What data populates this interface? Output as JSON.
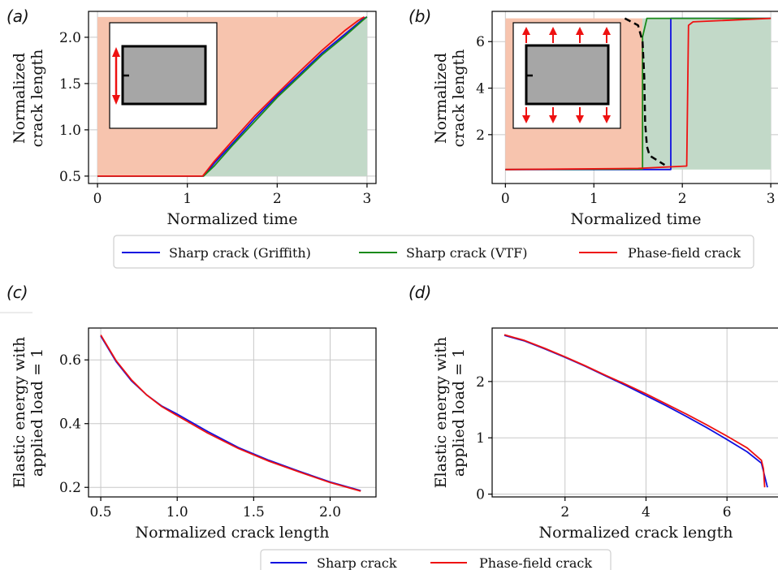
{
  "colors": {
    "griffith": "#1010e0",
    "vtf": "#1a8a1a",
    "phasefield": "#ee1111",
    "unstable_fill": "#f7c4ae",
    "stable_fill": "#c2d9c8",
    "specimen": "#a6a6a6",
    "arrows": "#ee1111"
  },
  "legend_top": [
    "Sharp crack (Griffith)",
    "Sharp crack (VTF)",
    "Phase-field crack"
  ],
  "legend_bottom": [
    "Sharp crack",
    "Phase-field crack"
  ],
  "chart_data": [
    {
      "panel": "(a)",
      "type": "line",
      "xlabel": "Normalized time",
      "ylabel": [
        "Normalized",
        "crack length"
      ],
      "xlim": [
        -0.1,
        3.1
      ],
      "ylim": [
        0.42,
        2.28
      ],
      "xticks": [
        {
          "v": 0,
          "label": "0"
        },
        {
          "v": 1,
          "label": "1"
        },
        {
          "v": 2,
          "label": "2"
        },
        {
          "v": 3,
          "label": "3"
        }
      ],
      "yticks": [
        {
          "v": 0.5,
          "label": "0.5"
        },
        {
          "v": 1.0,
          "label": "1.0"
        },
        {
          "v": 1.5,
          "label": "1.5"
        },
        {
          "v": 2.0,
          "label": "2.0"
        }
      ],
      "grid": true,
      "regions": {
        "x_range": [
          0,
          3
        ],
        "y_range": [
          0.5,
          2.22
        ]
      },
      "series": [
        {
          "key": "griffith",
          "x": [
            0,
            1.18,
            1.3,
            1.5,
            1.75,
            2.0,
            2.25,
            2.5,
            2.75,
            2.96,
            3.0
          ],
          "y": [
            0.5,
            0.5,
            0.64,
            0.85,
            1.12,
            1.37,
            1.6,
            1.83,
            2.03,
            2.2,
            2.22
          ]
        },
        {
          "key": "vtf",
          "x": [
            0,
            1.18,
            1.3,
            1.5,
            1.75,
            2.0,
            2.25,
            2.5,
            2.75,
            2.96,
            3.0
          ],
          "y": [
            0.5,
            0.5,
            0.61,
            0.83,
            1.09,
            1.35,
            1.58,
            1.81,
            2.01,
            2.19,
            2.22
          ]
        },
        {
          "key": "phasefield",
          "x": [
            0,
            1.17,
            1.3,
            1.5,
            1.75,
            2.0,
            2.25,
            2.5,
            2.75,
            2.9,
            2.97
          ],
          "y": [
            0.5,
            0.5,
            0.66,
            0.88,
            1.15,
            1.39,
            1.63,
            1.86,
            2.07,
            2.18,
            2.22
          ]
        }
      ]
    },
    {
      "panel": "(b)",
      "type": "line",
      "xlabel": "Normalized time",
      "ylabel": [
        "Normalized",
        "crack length"
      ],
      "xlim": [
        -0.15,
        3.1
      ],
      "ylim": [
        -0.1,
        7.3
      ],
      "xticks": [
        {
          "v": 0,
          "label": "0"
        },
        {
          "v": 1,
          "label": "1"
        },
        {
          "v": 2,
          "label": "2"
        },
        {
          "v": 3,
          "label": "3"
        }
      ],
      "yticks": [
        {
          "v": 2,
          "label": "2"
        },
        {
          "v": 4,
          "label": "4"
        },
        {
          "v": 6,
          "label": "6"
        }
      ],
      "grid": true,
      "regions": {
        "x_range": [
          0,
          3
        ],
        "y_range": [
          0.5,
          7.0
        ],
        "split_x": 1.55
      },
      "series": [
        {
          "key": "griffith",
          "x": [
            0,
            1.87,
            1.87,
            3.0
          ],
          "y": [
            0.5,
            0.5,
            7.0,
            7.0
          ]
        },
        {
          "key": "vtf",
          "x": [
            0,
            1.55,
            1.55,
            1.6,
            3.0
          ],
          "y": [
            0.5,
            0.52,
            6.2,
            7.0,
            7.0
          ]
        },
        {
          "key": "phasefield",
          "x": [
            0,
            1.5,
            2.05,
            2.07,
            2.12,
            3.0
          ],
          "y": [
            0.5,
            0.55,
            0.65,
            6.7,
            6.85,
            7.0
          ]
        },
        {
          "key": "boundary",
          "dashed": true,
          "x": [
            1.35,
            1.5,
            1.55,
            1.57,
            1.58,
            1.6,
            1.63,
            1.8
          ],
          "y": [
            7.0,
            6.7,
            6.0,
            4.5,
            2.5,
            1.5,
            1.1,
            0.7
          ]
        }
      ]
    },
    {
      "panel": "(c)",
      "type": "line",
      "xlabel": "Normalized crack length",
      "ylabel": [
        "Elastic energy with",
        "applied load = 1"
      ],
      "xlim": [
        0.42,
        2.3
      ],
      "ylim": [
        0.17,
        0.7
      ],
      "xticks": [
        {
          "v": 0.5,
          "label": "0.5"
        },
        {
          "v": 1.0,
          "label": "1.0"
        },
        {
          "v": 1.5,
          "label": "1.5"
        },
        {
          "v": 2.0,
          "label": "2.0"
        }
      ],
      "yticks": [
        {
          "v": 0.2,
          "label": "0.2"
        },
        {
          "v": 0.4,
          "label": "0.4"
        },
        {
          "v": 0.6,
          "label": "0.6"
        }
      ],
      "grid": true,
      "series": [
        {
          "key": "griffith",
          "x": [
            0.5,
            0.6,
            0.7,
            0.8,
            0.9,
            1.0,
            1.2,
            1.4,
            1.6,
            1.8,
            2.0,
            2.2
          ],
          "y": [
            0.675,
            0.595,
            0.535,
            0.49,
            0.455,
            0.43,
            0.375,
            0.325,
            0.285,
            0.25,
            0.217,
            0.19
          ]
        },
        {
          "key": "phasefield",
          "x": [
            0.5,
            0.6,
            0.7,
            0.8,
            0.9,
            1.0,
            1.2,
            1.4,
            1.6,
            1.8,
            2.0,
            2.2
          ],
          "y": [
            0.678,
            0.598,
            0.538,
            0.49,
            0.453,
            0.425,
            0.37,
            0.322,
            0.282,
            0.248,
            0.215,
            0.188
          ]
        }
      ]
    },
    {
      "panel": "(d)",
      "type": "line",
      "xlabel": "Normalized crack length",
      "ylabel": [
        "Elastic energy with",
        "applied load = 1"
      ],
      "xlim": [
        0.2,
        7.3
      ],
      "ylim": [
        -0.05,
        2.95
      ],
      "xticks": [
        {
          "v": 2,
          "label": "2"
        },
        {
          "v": 4,
          "label": "4"
        },
        {
          "v": 6,
          "label": "6"
        }
      ],
      "yticks": [
        {
          "v": 0,
          "label": "0"
        },
        {
          "v": 1,
          "label": "1"
        },
        {
          "v": 2,
          "label": "2"
        }
      ],
      "grid": true,
      "series": [
        {
          "key": "griffith",
          "x": [
            0.5,
            1.0,
            1.5,
            2.0,
            2.5,
            3.0,
            3.5,
            4.0,
            4.5,
            5.0,
            5.5,
            6.0,
            6.5,
            6.85,
            7.0
          ],
          "y": [
            2.82,
            2.72,
            2.58,
            2.43,
            2.27,
            2.1,
            1.93,
            1.75,
            1.57,
            1.38,
            1.18,
            0.97,
            0.75,
            0.55,
            0.12
          ]
        },
        {
          "key": "phasefield",
          "x": [
            0.5,
            1.0,
            1.5,
            2.0,
            2.5,
            3.0,
            3.5,
            4.0,
            4.5,
            5.0,
            5.5,
            6.0,
            6.5,
            6.85,
            6.9,
            6.93
          ],
          "y": [
            2.83,
            2.73,
            2.59,
            2.44,
            2.28,
            2.11,
            1.95,
            1.78,
            1.6,
            1.42,
            1.23,
            1.03,
            0.82,
            0.6,
            0.45,
            0.12
          ]
        }
      ]
    }
  ]
}
